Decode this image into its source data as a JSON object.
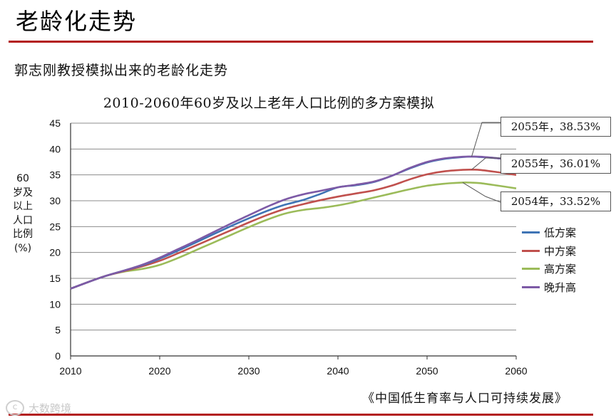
{
  "page": {
    "title": "老龄化走势",
    "subtitle": "郭志刚教授模拟出来的老龄化走势",
    "source": "《中国低生育率与人口可持续发展》",
    "watermark": "大数跨境"
  },
  "colors": {
    "rule": "#b31b1b",
    "low": "#3f74b5",
    "mid": "#c0504d",
    "high": "#9bbb59",
    "late": "#7d5aa6",
    "grid": "#8c8c8c",
    "axis": "#333333"
  },
  "chart_data": {
    "type": "line",
    "title": "2010-2060年60岁及以上老年人口比例的多方案模拟",
    "xlabel": "",
    "ylabel": "60岁及以上人口比例(%)",
    "xlim": [
      2010,
      2060
    ],
    "ylim": [
      0,
      45
    ],
    "x_ticks": [
      2010,
      2020,
      2030,
      2040,
      2050,
      2060
    ],
    "y_ticks": [
      0,
      5,
      10,
      15,
      20,
      25,
      30,
      35,
      40,
      45
    ],
    "grid": true,
    "legend_position": "right",
    "x": [
      2010,
      2012,
      2014,
      2016,
      2018,
      2020,
      2022,
      2024,
      2026,
      2028,
      2030,
      2032,
      2034,
      2036,
      2038,
      2040,
      2042,
      2044,
      2046,
      2048,
      2050,
      2052,
      2054,
      2055,
      2056,
      2058,
      2060
    ],
    "series": [
      {
        "name": "低方案",
        "color_key": "low",
        "values": [
          13.0,
          14.3,
          15.5,
          16.5,
          17.5,
          18.8,
          20.3,
          21.9,
          23.5,
          25.1,
          26.6,
          28.0,
          29.2,
          30.1,
          31.3,
          32.6,
          33.0,
          33.6,
          34.8,
          36.2,
          37.4,
          38.1,
          38.45,
          38.53,
          38.45,
          38.2,
          37.9
        ]
      },
      {
        "name": "中方案",
        "color_key": "mid",
        "values": [
          13.0,
          14.3,
          15.5,
          16.4,
          17.3,
          18.4,
          19.8,
          21.3,
          22.8,
          24.3,
          25.8,
          27.2,
          28.4,
          29.3,
          30.1,
          30.8,
          31.4,
          32.0,
          32.9,
          34.1,
          35.1,
          35.7,
          35.97,
          36.01,
          35.95,
          35.5,
          35.0
        ]
      },
      {
        "name": "高方案",
        "color_key": "high",
        "values": [
          13.0,
          14.3,
          15.5,
          16.3,
          16.8,
          17.6,
          18.9,
          20.4,
          21.9,
          23.4,
          24.9,
          26.3,
          27.5,
          28.2,
          28.6,
          29.1,
          29.8,
          30.6,
          31.4,
          32.2,
          32.9,
          33.3,
          33.52,
          33.5,
          33.4,
          32.9,
          32.4
        ]
      },
      {
        "name": "晚升高",
        "color_key": "late",
        "values": [
          13.0,
          14.3,
          15.5,
          16.5,
          17.6,
          19.0,
          20.6,
          22.2,
          23.9,
          25.6,
          27.2,
          28.8,
          30.2,
          31.2,
          31.9,
          32.6,
          33.1,
          33.7,
          34.8,
          36.3,
          37.5,
          38.2,
          38.5,
          38.53,
          38.5,
          38.2,
          37.9
        ]
      }
    ],
    "annotations": [
      {
        "text": "2055年，38.53%",
        "x": 2055,
        "y": 38.53
      },
      {
        "text": "2055年，36.01%",
        "x": 2055,
        "y": 36.01
      },
      {
        "text": "2054年，33.52%",
        "x": 2054,
        "y": 33.52
      }
    ]
  }
}
